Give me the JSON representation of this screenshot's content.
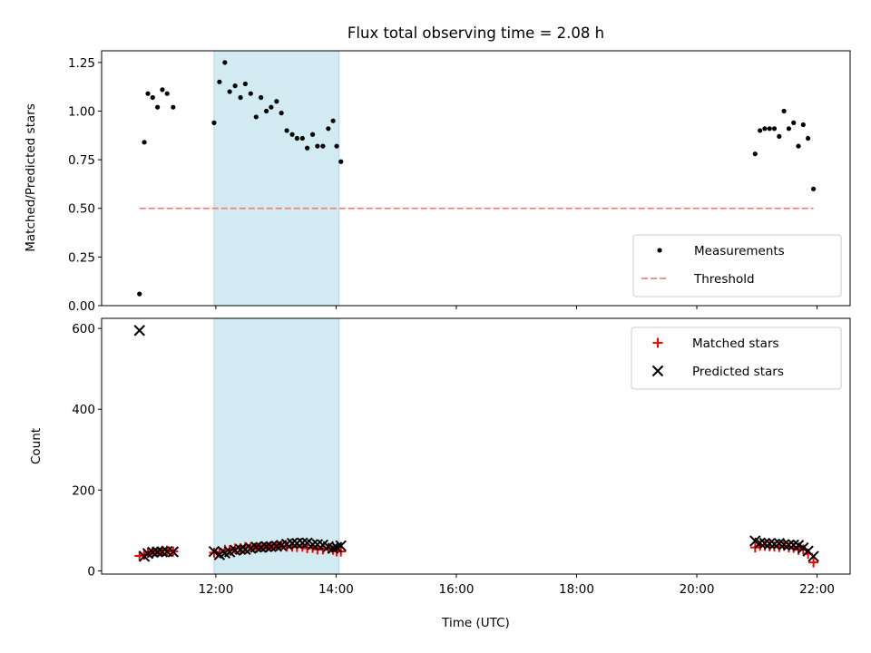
{
  "chart_data": {
    "title": "Flux total observing time = 2.08 h",
    "shade_color": "#add8e6",
    "shaded_interval": [
      11.97,
      14.05
    ],
    "xlabel": "Time (UTC)",
    "xlim": [
      10.1,
      22.55
    ],
    "xticks": [
      12,
      14,
      16,
      18,
      20,
      22
    ],
    "xtick_labels": [
      "12:00",
      "14:00",
      "16:00",
      "18:00",
      "20:00",
      "22:00"
    ],
    "panels": [
      {
        "type": "scatter",
        "ylabel": "Matched/Predicted stars",
        "ylim": [
          0,
          1.31
        ],
        "yticks": [
          0,
          0.25,
          0.5,
          0.75,
          1.0,
          1.25
        ],
        "ytick_labels": [
          "0.00",
          "0.25",
          "0.50",
          "0.75",
          "1.00",
          "1.25"
        ],
        "legend_position": "lower-right",
        "series": [
          {
            "name": "Measurements",
            "color": "#000000",
            "marker": "dot",
            "points": [
              [
                10.73,
                0.06
              ],
              [
                10.81,
                0.84
              ],
              [
                10.87,
                1.09
              ],
              [
                10.95,
                1.07
              ],
              [
                11.03,
                1.02
              ],
              [
                11.11,
                1.11
              ],
              [
                11.19,
                1.09
              ],
              [
                11.29,
                1.02
              ],
              [
                11.97,
                0.94
              ],
              [
                12.06,
                1.15
              ],
              [
                12.15,
                1.25
              ],
              [
                12.23,
                1.1
              ],
              [
                12.32,
                1.13
              ],
              [
                12.41,
                1.07
              ],
              [
                12.49,
                1.14
              ],
              [
                12.58,
                1.09
              ],
              [
                12.67,
                0.97
              ],
              [
                12.75,
                1.07
              ],
              [
                12.84,
                1.0
              ],
              [
                12.92,
                1.02
              ],
              [
                13.01,
                1.05
              ],
              [
                13.09,
                0.99
              ],
              [
                13.18,
                0.9
              ],
              [
                13.27,
                0.88
              ],
              [
                13.35,
                0.86
              ],
              [
                13.44,
                0.86
              ],
              [
                13.52,
                0.81
              ],
              [
                13.61,
                0.88
              ],
              [
                13.69,
                0.82
              ],
              [
                13.78,
                0.82
              ],
              [
                13.87,
                0.91
              ],
              [
                13.95,
                0.95
              ],
              [
                14.01,
                0.82
              ],
              [
                14.08,
                0.74
              ],
              [
                20.97,
                0.78
              ],
              [
                21.05,
                0.9
              ],
              [
                21.13,
                0.91
              ],
              [
                21.21,
                0.91
              ],
              [
                21.29,
                0.91
              ],
              [
                21.37,
                0.87
              ],
              [
                21.45,
                1.0
              ],
              [
                21.53,
                0.91
              ],
              [
                21.61,
                0.94
              ],
              [
                21.69,
                0.82
              ],
              [
                21.77,
                0.93
              ],
              [
                21.85,
                0.86
              ],
              [
                21.94,
                0.6
              ]
            ]
          },
          {
            "name": "Threshold",
            "color": "#f08080",
            "style": "dashed",
            "points": [
              [
                10.73,
                0.5
              ],
              [
                21.94,
                0.5
              ]
            ]
          }
        ]
      },
      {
        "type": "scatter",
        "ylabel": "Count",
        "ylim": [
          -8,
          625
        ],
        "yticks": [
          0,
          200,
          400,
          600
        ],
        "ytick_labels": [
          "0",
          "200",
          "400",
          "600"
        ],
        "legend_position": "upper-right",
        "series": [
          {
            "name": "Matched stars",
            "color": "#ff0000",
            "marker": "plus",
            "points": [
              [
                10.73,
                37
              ],
              [
                10.81,
                40
              ],
              [
                10.87,
                45
              ],
              [
                10.95,
                47
              ],
              [
                11.03,
                48
              ],
              [
                11.11,
                50
              ],
              [
                11.19,
                50
              ],
              [
                11.29,
                48
              ],
              [
                11.97,
                45
              ],
              [
                12.06,
                46
              ],
              [
                12.15,
                52
              ],
              [
                12.23,
                51
              ],
              [
                12.32,
                55
              ],
              [
                12.41,
                56
              ],
              [
                12.49,
                59
              ],
              [
                12.58,
                58
              ],
              [
                12.67,
                57
              ],
              [
                12.75,
                60
              ],
              [
                12.84,
                58
              ],
              [
                12.92,
                60
              ],
              [
                13.01,
                63
              ],
              [
                13.09,
                62
              ],
              [
                13.18,
                60
              ],
              [
                13.27,
                60
              ],
              [
                13.35,
                59
              ],
              [
                13.44,
                60
              ],
              [
                13.52,
                56
              ],
              [
                13.61,
                57
              ],
              [
                13.69,
                53
              ],
              [
                13.78,
                53
              ],
              [
                13.87,
                55
              ],
              [
                13.95,
                52
              ],
              [
                14.01,
                48
              ],
              [
                14.08,
                48
              ],
              [
                20.97,
                58
              ],
              [
                21.05,
                62
              ],
              [
                21.13,
                62
              ],
              [
                21.21,
                61
              ],
              [
                21.29,
                60
              ],
              [
                21.37,
                59
              ],
              [
                21.45,
                62
              ],
              [
                21.53,
                58
              ],
              [
                21.61,
                57
              ],
              [
                21.69,
                52
              ],
              [
                21.77,
                53
              ],
              [
                21.85,
                42
              ],
              [
                21.94,
                21
              ]
            ]
          },
          {
            "name": "Predicted stars",
            "color": "#000000",
            "marker": "cross",
            "points": [
              [
                10.73,
                595
              ],
              [
                10.81,
                36
              ],
              [
                10.87,
                43
              ],
              [
                10.95,
                46
              ],
              [
                11.03,
                47
              ],
              [
                11.11,
                47
              ],
              [
                11.19,
                48
              ],
              [
                11.29,
                47
              ],
              [
                11.97,
                48
              ],
              [
                12.06,
                40
              ],
              [
                12.15,
                44
              ],
              [
                12.23,
                47
              ],
              [
                12.32,
                51
              ],
              [
                12.41,
                53
              ],
              [
                12.49,
                53
              ],
              [
                12.58,
                56
              ],
              [
                12.67,
                59
              ],
              [
                12.75,
                58
              ],
              [
                12.84,
                60
              ],
              [
                12.92,
                60
              ],
              [
                13.01,
                61
              ],
              [
                13.09,
                63
              ],
              [
                13.18,
                66
              ],
              [
                13.27,
                68
              ],
              [
                13.35,
                68
              ],
              [
                13.44,
                69
              ],
              [
                13.52,
                69
              ],
              [
                13.61,
                65
              ],
              [
                13.69,
                65
              ],
              [
                13.78,
                64
              ],
              [
                13.87,
                60
              ],
              [
                13.95,
                56
              ],
              [
                14.01,
                58
              ],
              [
                14.08,
                62
              ],
              [
                20.97,
                74
              ],
              [
                21.05,
                69
              ],
              [
                21.13,
                68
              ],
              [
                21.21,
                67
              ],
              [
                21.29,
                66
              ],
              [
                21.37,
                68
              ],
              [
                21.45,
                65
              ],
              [
                21.53,
                64
              ],
              [
                21.61,
                64
              ],
              [
                21.69,
                63
              ],
              [
                21.77,
                57
              ],
              [
                21.85,
                49
              ],
              [
                21.94,
                36
              ]
            ]
          }
        ]
      }
    ]
  }
}
